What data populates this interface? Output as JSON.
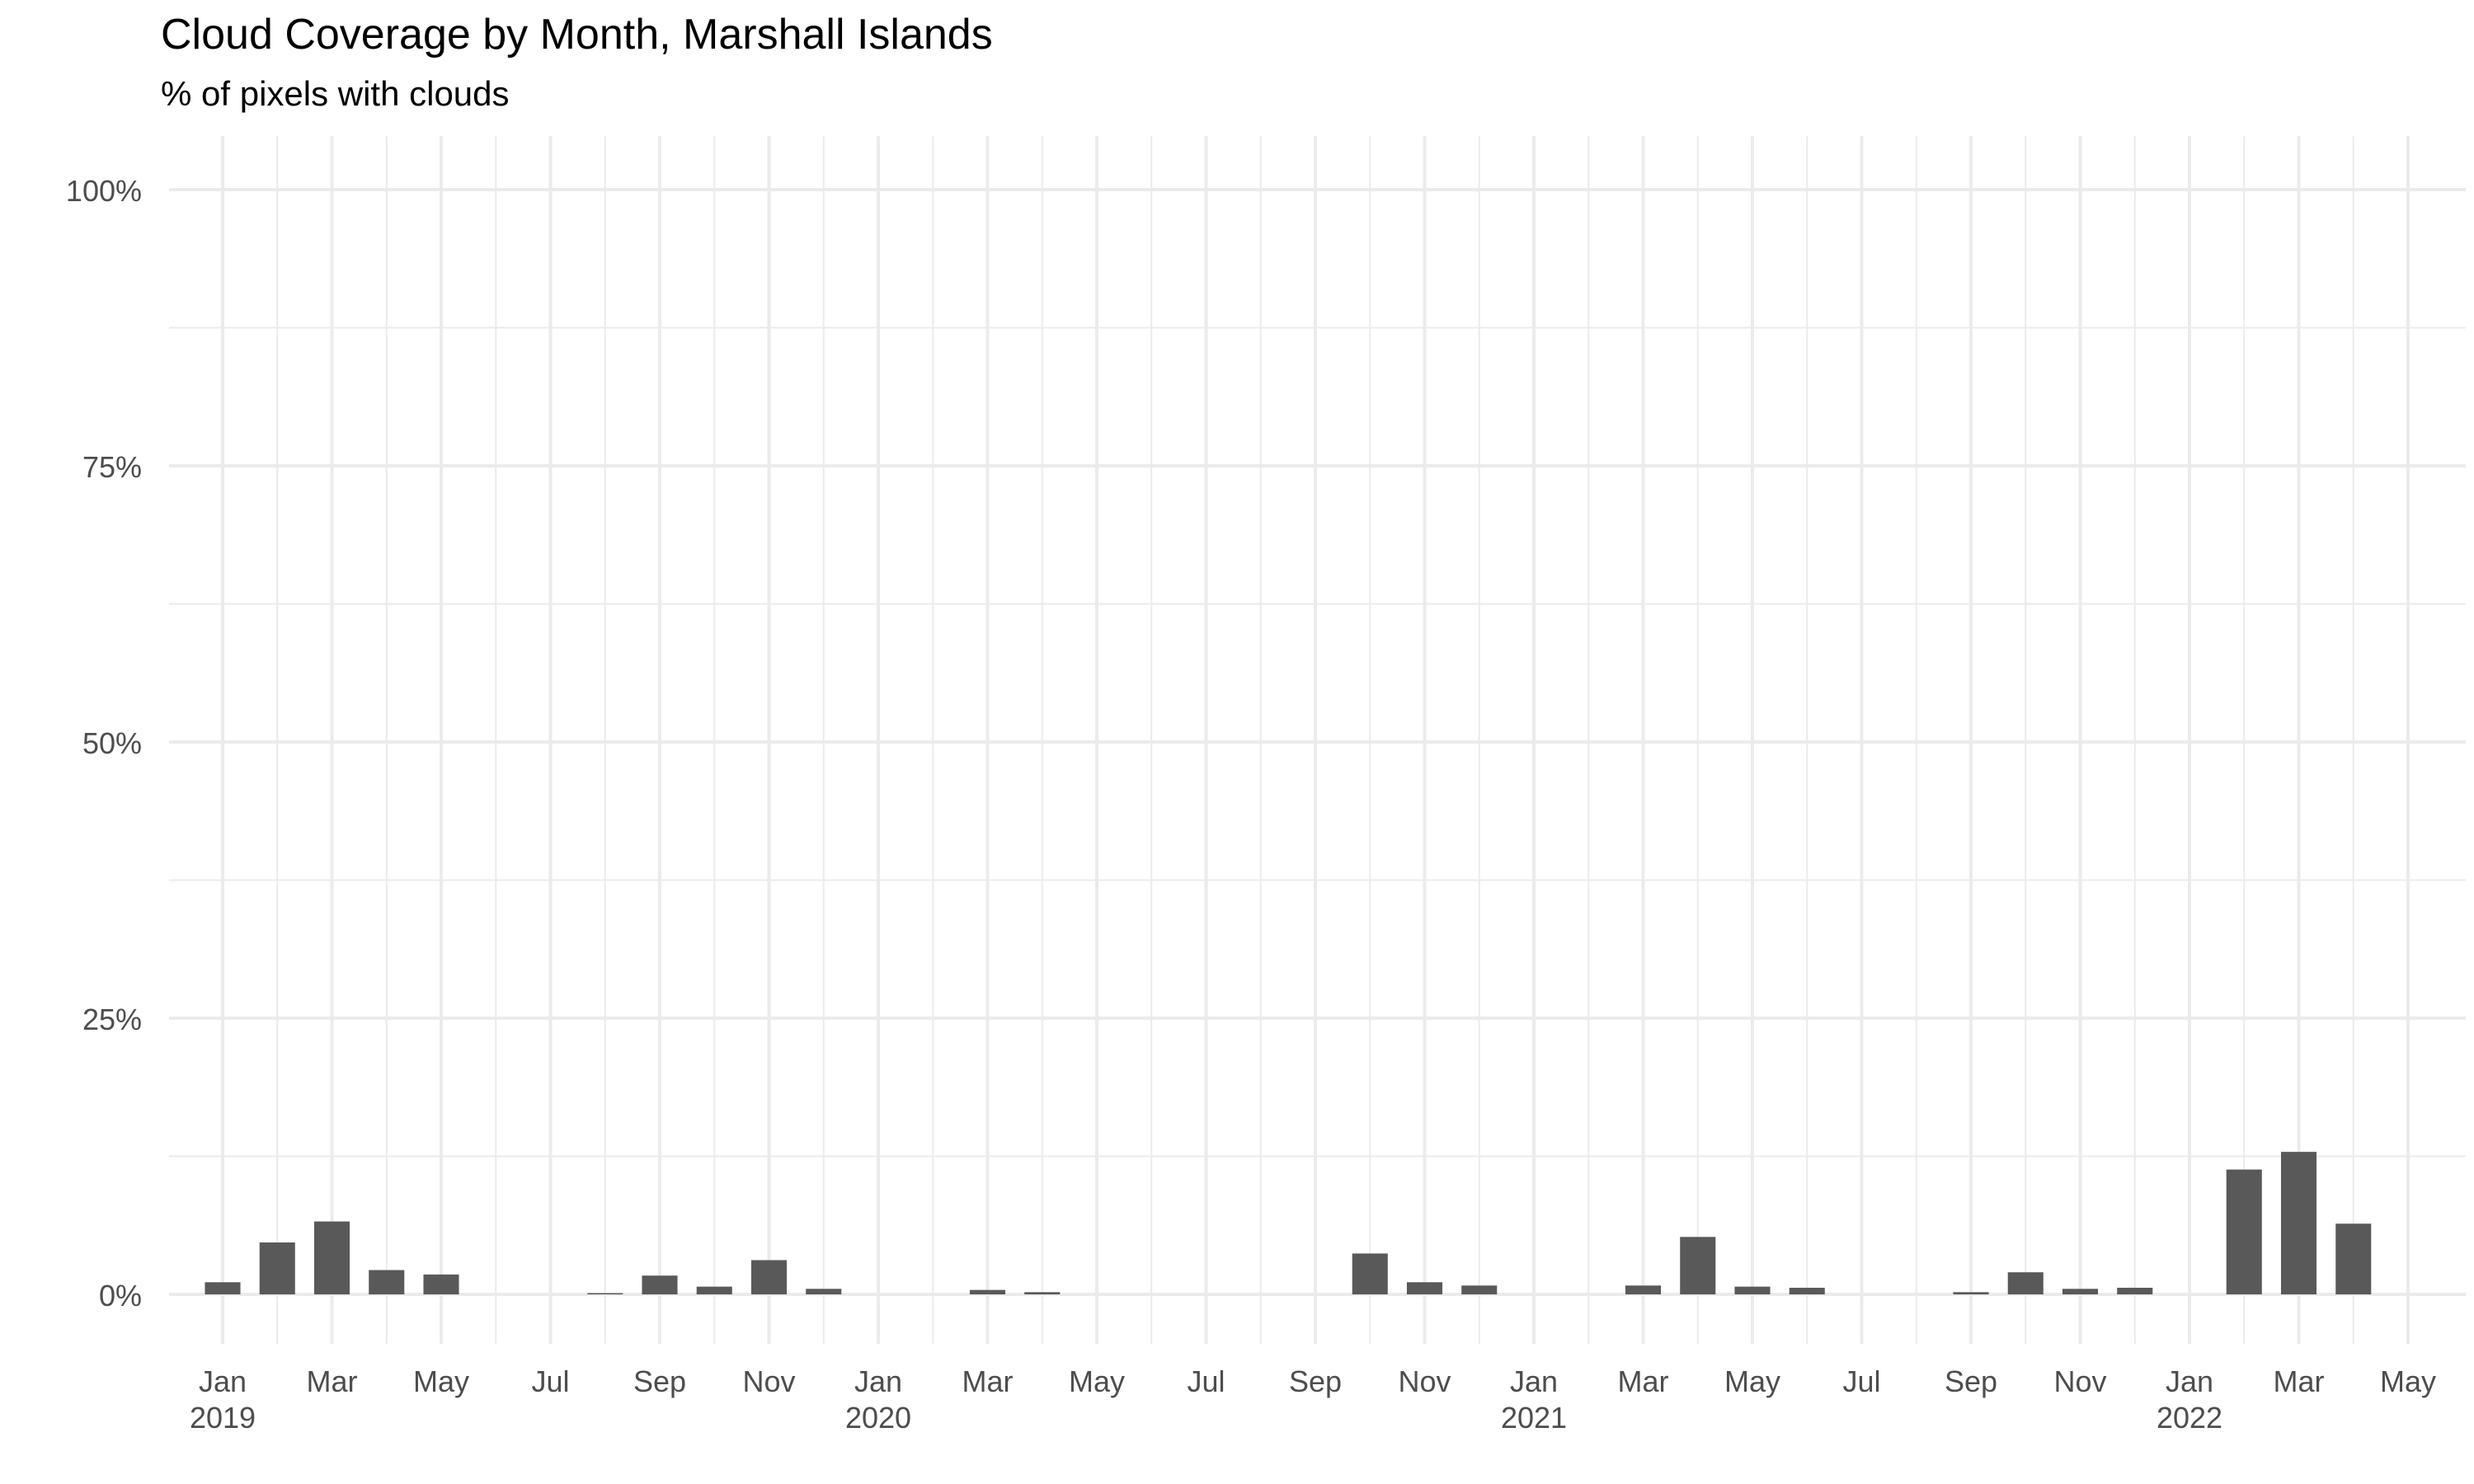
{
  "chart_data": {
    "type": "bar",
    "title": "Cloud Coverage by Month, Marshall Islands",
    "subtitle": "% of pixels with clouds",
    "xlabel": "",
    "ylabel": "",
    "ylim": [
      0,
      1
    ],
    "y_ticks": [
      {
        "value": 0,
        "label": "0%"
      },
      {
        "value": 0.25,
        "label": "25%"
      },
      {
        "value": 0.5,
        "label": "50%"
      },
      {
        "value": 0.75,
        "label": "75%"
      },
      {
        "value": 1,
        "label": "100%"
      }
    ],
    "x_range": [
      "2018-12",
      "2022-05"
    ],
    "x_ticks": [
      {
        "date": "2019-01",
        "label": "Jan",
        "year": "2019"
      },
      {
        "date": "2019-03",
        "label": "Mar"
      },
      {
        "date": "2019-05",
        "label": "May"
      },
      {
        "date": "2019-07",
        "label": "Jul"
      },
      {
        "date": "2019-09",
        "label": "Sep"
      },
      {
        "date": "2019-11",
        "label": "Nov"
      },
      {
        "date": "2020-01",
        "label": "Jan",
        "year": "2020"
      },
      {
        "date": "2020-03",
        "label": "Mar"
      },
      {
        "date": "2020-05",
        "label": "May"
      },
      {
        "date": "2020-07",
        "label": "Jul"
      },
      {
        "date": "2020-09",
        "label": "Sep"
      },
      {
        "date": "2020-11",
        "label": "Nov"
      },
      {
        "date": "2021-01",
        "label": "Jan",
        "year": "2021"
      },
      {
        "date": "2021-03",
        "label": "Mar"
      },
      {
        "date": "2021-05",
        "label": "May"
      },
      {
        "date": "2021-07",
        "label": "Jul"
      },
      {
        "date": "2021-09",
        "label": "Sep"
      },
      {
        "date": "2021-11",
        "label": "Nov"
      },
      {
        "date": "2022-01",
        "label": "Jan",
        "year": "2022"
      },
      {
        "date": "2022-03",
        "label": "Mar"
      },
      {
        "date": "2022-05",
        "label": "May"
      }
    ],
    "data": [
      {
        "date": "2019-01",
        "value": 0.011
      },
      {
        "date": "2019-02",
        "value": 0.047
      },
      {
        "date": "2019-03",
        "value": 0.066
      },
      {
        "date": "2019-04",
        "value": 0.022
      },
      {
        "date": "2019-05",
        "value": 0.018
      },
      {
        "date": "2019-08",
        "value": 0.001
      },
      {
        "date": "2019-09",
        "value": 0.017
      },
      {
        "date": "2019-10",
        "value": 0.007
      },
      {
        "date": "2019-11",
        "value": 0.031
      },
      {
        "date": "2019-12",
        "value": 0.005
      },
      {
        "date": "2020-03",
        "value": 0.004
      },
      {
        "date": "2020-04",
        "value": 0.002
      },
      {
        "date": "2020-10",
        "value": 0.037
      },
      {
        "date": "2020-11",
        "value": 0.011
      },
      {
        "date": "2020-12",
        "value": 0.008
      },
      {
        "date": "2021-03",
        "value": 0.008
      },
      {
        "date": "2021-04",
        "value": 0.052
      },
      {
        "date": "2021-05",
        "value": 0.007
      },
      {
        "date": "2021-06",
        "value": 0.006
      },
      {
        "date": "2021-09",
        "value": 0.002
      },
      {
        "date": "2021-10",
        "value": 0.02
      },
      {
        "date": "2021-11",
        "value": 0.005
      },
      {
        "date": "2021-12",
        "value": 0.006
      },
      {
        "date": "2022-02",
        "value": 0.113
      },
      {
        "date": "2022-03",
        "value": 0.129
      },
      {
        "date": "2022-04",
        "value": 0.064
      }
    ],
    "bar_color": "#595959",
    "grid": true,
    "legend": "none"
  }
}
